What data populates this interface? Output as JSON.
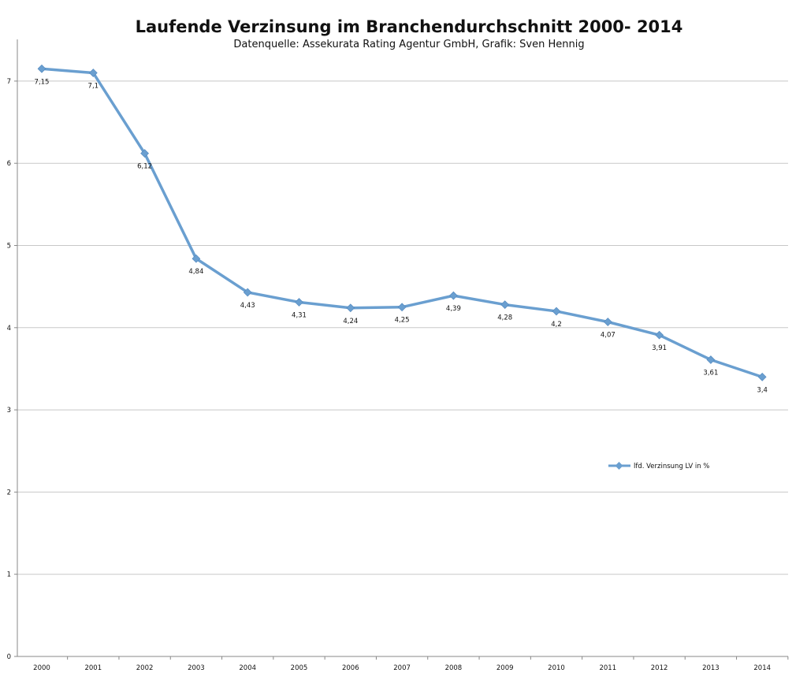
{
  "chart_data": {
    "type": "line",
    "title": "Laufende Verzinsung im Branchendurchschnitt 2000- 2014",
    "subtitle": "Datenquelle: Assekurata Rating Agentur GmbH, Grafik: Sven Hennig",
    "xlabel": "",
    "ylabel": "",
    "categories": [
      "2000",
      "2001",
      "2002",
      "2003",
      "2004",
      "2005",
      "2006",
      "2007",
      "2008",
      "2009",
      "2010",
      "2011",
      "2012",
      "2013",
      "2014"
    ],
    "series": [
      {
        "name": "lfd. Verzinsung LV in %",
        "values": [
          7.15,
          7.1,
          6.12,
          4.84,
          4.43,
          4.31,
          4.24,
          4.25,
          4.39,
          4.28,
          4.2,
          4.07,
          3.91,
          3.61,
          3.4
        ],
        "labels": [
          "7,15",
          "7,1",
          "6,12",
          "4,84",
          "4,43",
          "4,31",
          "4,24",
          "4,25",
          "4,39",
          "4,28",
          "4,2",
          "4,07",
          "3,91",
          "3,61",
          "3,4"
        ],
        "color": "#6a9fd0"
      }
    ],
    "ylim": [
      0,
      7.5
    ],
    "yticks": [
      "0",
      "1",
      "2",
      "3",
      "4",
      "5",
      "6",
      "7"
    ],
    "grid": true,
    "legend": "right-middle"
  }
}
